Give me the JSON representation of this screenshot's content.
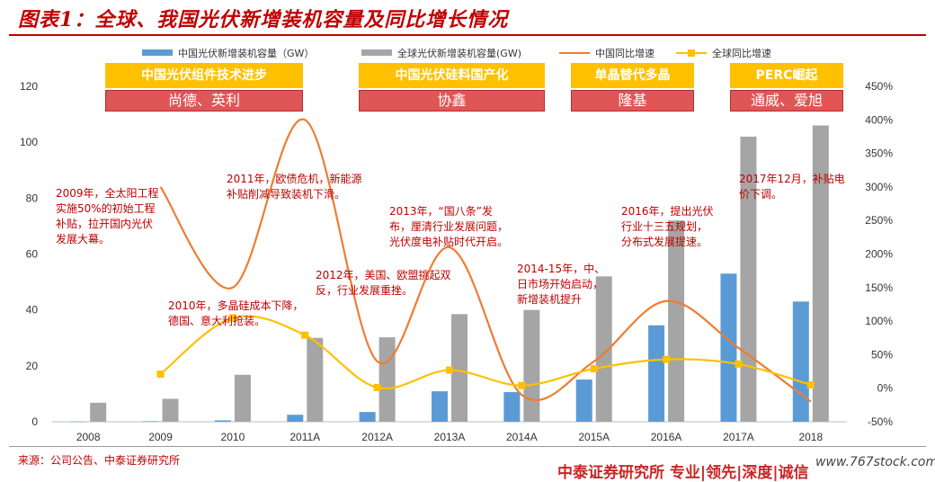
{
  "title": "图表1：全球、我国光伏新增装机容量及同比增长情况",
  "source": "来源：公司公告、中泰证券研究所",
  "watermark": "中泰证券研究所 专业|领先|深度|诚信",
  "stock_watermark": "www.767stock.com",
  "colors": {
    "china_bar": "#5b9bd5",
    "global_bar": "#a5a5a5",
    "china_yoy": "#ed7d31",
    "global_yoy": "#ffc000",
    "annotation": "#c00000"
  },
  "banners": [
    {
      "top": "中国光伏组件技术进步",
      "bottom": "尚德、英利"
    },
    {
      "top": "中国光伏硅料国产化",
      "bottom": "协鑫"
    },
    {
      "top": "单晶替代多晶",
      "bottom": "隆基"
    },
    {
      "top": "PERC崛起",
      "bottom": "通威、爱旭"
    }
  ],
  "annotations": [
    {
      "lines": [
        "2009年，全太阳工程",
        "实施50%的初始工程",
        "补贴，拉开国内光伏",
        "发展大幕。"
      ]
    },
    {
      "lines": [
        "2011年，欧债危机，新能源",
        "补贴削减导致装机下滑。"
      ]
    },
    {
      "lines": [
        "2010年，多晶硅成本下降，",
        "德国、意大利抢装。"
      ]
    },
    {
      "lines": [
        "2012年，美国、欧盟挑起双",
        "反，行业发展重挫。"
      ]
    },
    {
      "lines": [
        "2013年，“国八条”发",
        "布，厘清行业发展问题，",
        "光伏度电补贴时代开启。"
      ]
    },
    {
      "lines": [
        "2014-15年，中、",
        "日市场开始启动，",
        "新增装机提升"
      ]
    },
    {
      "lines": [
        "2016年，提出光伏",
        "行业十三五规划，",
        "分布式发展提速。"
      ]
    },
    {
      "lines": [
        "2017年12月，补贴电",
        "价下调。"
      ]
    }
  ],
  "chart_data": {
    "type": "bar",
    "categories": [
      "2008",
      "2009",
      "2010",
      "2011A",
      "2012A",
      "2013A",
      "2014A",
      "2015A",
      "2016A",
      "2017A",
      "2018"
    ],
    "series": [
      {
        "name": "中国光伏新增装机容量（GW）",
        "kind": "bar",
        "axis": "left",
        "values": [
          0.05,
          0.2,
          0.5,
          2.5,
          3.5,
          10.9,
          10.6,
          15.1,
          34.5,
          53.0,
          43.0
        ]
      },
      {
        "name": "全球光伏新增装机容量(GW)",
        "kind": "bar",
        "axis": "left",
        "values": [
          6.8,
          8.2,
          16.8,
          30.0,
          30.2,
          38.5,
          40.0,
          52.0,
          72.0,
          102.0,
          106.0
        ]
      },
      {
        "name": "中国同比增速",
        "kind": "line",
        "axis": "right",
        "smooth": true,
        "values": [
          null,
          3.0,
          1.5,
          4.0,
          0.4,
          2.1,
          -0.1,
          0.4,
          1.3,
          0.6,
          -0.2
        ]
      },
      {
        "name": "全球同比增速",
        "kind": "line",
        "axis": "right",
        "smooth": true,
        "markers": true,
        "values": [
          null,
          0.21,
          1.05,
          0.79,
          0.01,
          0.27,
          0.04,
          0.29,
          0.43,
          0.36,
          0.05
        ]
      }
    ],
    "left_axis": {
      "min": 0,
      "max": 120,
      "ticks": [
        0,
        20,
        40,
        60,
        80,
        100,
        120
      ]
    },
    "right_axis": {
      "min": -0.5,
      "max": 4.5,
      "ticks": [
        "-50%",
        "0%",
        "50%",
        "100%",
        "150%",
        "200%",
        "250%",
        "300%",
        "350%",
        "400%",
        "450%"
      ]
    },
    "legend_position": "top",
    "grid": false
  }
}
